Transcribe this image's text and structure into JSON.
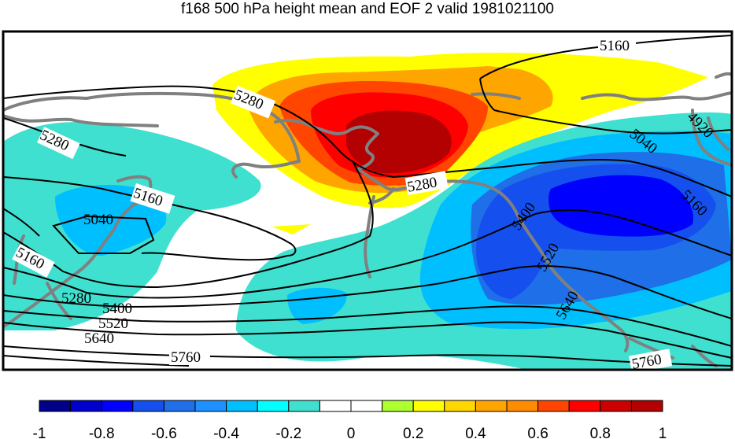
{
  "title": "f168 500 hPa height mean and EOF 2 valid 1981021100",
  "contour_labels": [
    "5160",
    "5280",
    "5280",
    "5040",
    "5160",
    "5160",
    "5280",
    "5400",
    "5520",
    "5640",
    "5760",
    "5280",
    "5400",
    "5520",
    "5640",
    "5040",
    "4920",
    "5160",
    "5760"
  ],
  "colorbar": {
    "tick_labels": [
      "-1",
      "-0.8",
      "-0.6",
      "-0.4",
      "-0.2",
      "0",
      "0.2",
      "0.4",
      "0.6",
      "0.8",
      "1"
    ],
    "colors": [
      "#00008b",
      "#0000cd",
      "#0000ff",
      "#1550ee",
      "#1f6fe8",
      "#1e90ff",
      "#00bfff",
      "#00ffff",
      "#40e0d0",
      "#ffffff",
      "#ffffff",
      "#adff2f",
      "#ffff00",
      "#ffd700",
      "#ffa500",
      "#ff8c00",
      "#ff4500",
      "#ff0000",
      "#cd0000",
      "#b30000"
    ]
  },
  "colors": {
    "coast": "#808080",
    "contour": "#000000"
  }
}
